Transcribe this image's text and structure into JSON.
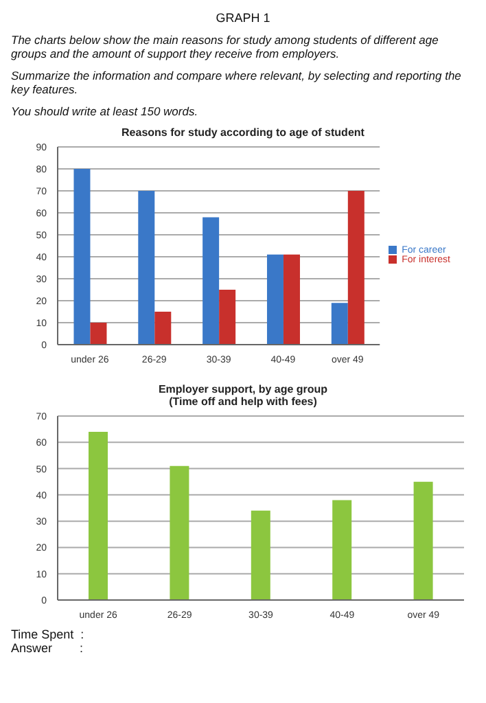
{
  "chart_data": [
    {
      "type": "bar",
      "title": "Reasons for study according to age of student",
      "annotations": [
        "GRAPH 1",
        "The charts below show the main reasons for study among students of different age groups and the amount of support they receive from employers.",
        "Summarize the information and compare where relevant, by selecting and reporting the key features.",
        "You should write at least 150 words."
      ],
      "categories": [
        "under 26",
        "26-29",
        "30-39",
        "40-49",
        "over 49"
      ],
      "series": [
        {
          "name": "For career",
          "color": "#3a78c8",
          "values": [
            80,
            70,
            58,
            41,
            19
          ]
        },
        {
          "name": "For interest",
          "color": "#c8302c",
          "values": [
            10,
            15,
            25,
            41,
            70
          ]
        }
      ],
      "ylim": [
        0,
        90
      ],
      "yticks": [
        0,
        10,
        20,
        30,
        40,
        50,
        60,
        70,
        80,
        90
      ],
      "grid": "y",
      "legend": "right"
    },
    {
      "type": "bar",
      "title": "Employer support, by age group",
      "subtitle": "(Time off and help with fees)",
      "annotations": [
        "Time Spent  :",
        "Answer        :"
      ],
      "categories": [
        "under 26",
        "26-29",
        "30-39",
        "40-49",
        "over 49"
      ],
      "values": [
        64,
        51,
        34,
        38,
        45
      ],
      "color": "#8cc63f",
      "ylim": [
        0,
        70
      ],
      "yticks": [
        0,
        10,
        20,
        30,
        40,
        50,
        60,
        70
      ],
      "grid": "y"
    }
  ]
}
